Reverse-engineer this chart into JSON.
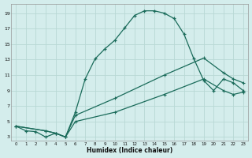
{
  "xlabel": "Humidex (Indice chaleur)",
  "bg_color": "#d4edec",
  "grid_color": "#b8d8d5",
  "line_color": "#1a6b5a",
  "xlim": [
    -0.5,
    23.5
  ],
  "ylim": [
    2.5,
    20.2
  ],
  "xticks": [
    0,
    1,
    2,
    3,
    4,
    5,
    6,
    7,
    8,
    9,
    10,
    11,
    12,
    13,
    14,
    15,
    16,
    17,
    18,
    19,
    20,
    21,
    22,
    23
  ],
  "yticks": [
    3,
    5,
    7,
    9,
    11,
    13,
    15,
    17,
    19
  ],
  "curve1_x": [
    0,
    1,
    2,
    3,
    4,
    5,
    6,
    7,
    8,
    9,
    10,
    11,
    12,
    13,
    14,
    15,
    16,
    17,
    18,
    19,
    20,
    21,
    22,
    23
  ],
  "curve1_y": [
    4.4,
    3.8,
    3.7,
    3.0,
    3.5,
    3.0,
    6.2,
    10.5,
    13.1,
    14.4,
    15.5,
    17.1,
    18.7,
    19.3,
    19.3,
    19.0,
    18.3,
    16.3,
    13.1,
    10.3,
    9.0,
    10.5,
    10.0,
    9.0
  ],
  "curve2_x": [
    0,
    3,
    4,
    5,
    6,
    10,
    15,
    19,
    21,
    22,
    23
  ],
  "curve2_y": [
    4.4,
    3.8,
    3.5,
    3.0,
    5.8,
    8.0,
    11.0,
    13.2,
    11.3,
    10.5,
    10.0
  ],
  "curve3_x": [
    0,
    3,
    4,
    5,
    6,
    10,
    15,
    19,
    21,
    22,
    23
  ],
  "curve3_y": [
    4.4,
    3.8,
    3.5,
    3.0,
    5.0,
    6.2,
    8.5,
    10.5,
    9.0,
    8.5,
    8.8
  ]
}
